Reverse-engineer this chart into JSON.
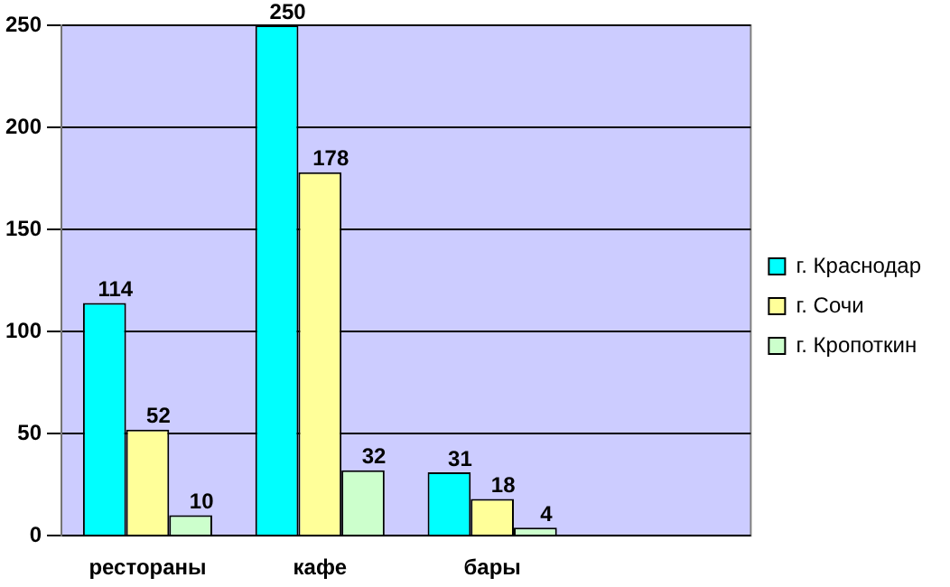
{
  "chart_data": {
    "type": "bar",
    "categories": [
      "рестораны",
      "кафе",
      "бары",
      null
    ],
    "series": [
      {
        "name": "г. Краснодар",
        "color": "#00ffff",
        "values": [
          114,
          250,
          31,
          null
        ]
      },
      {
        "name": "г. Сочи",
        "color": "#ffff99",
        "values": [
          52,
          178,
          18,
          null
        ]
      },
      {
        "name": "г. Кропоткин",
        "color": "#ccffcc",
        "values": [
          10,
          32,
          4,
          null
        ]
      }
    ],
    "ylim": [
      0,
      250
    ],
    "yticks": [
      0,
      50,
      100,
      150,
      200,
      250
    ],
    "grid": "y",
    "legend": "right",
    "data_labels": true
  }
}
